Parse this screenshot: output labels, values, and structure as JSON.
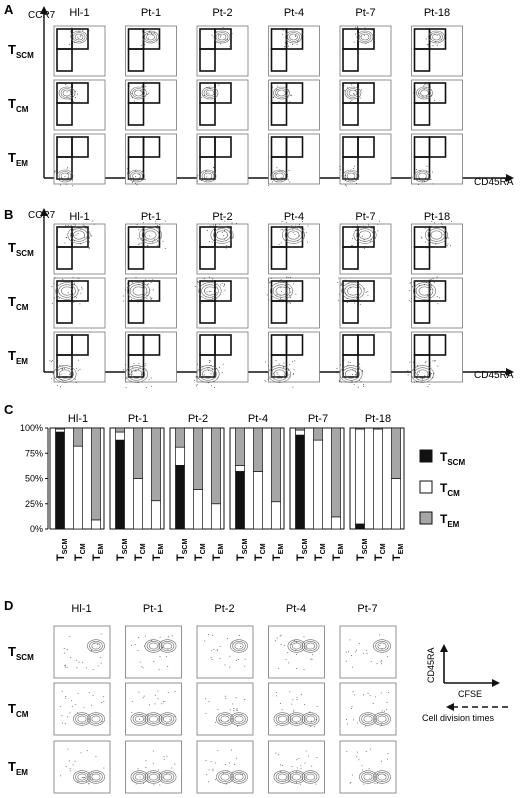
{
  "samples_abc": [
    "Hl-1",
    "Pt-1",
    "Pt-2",
    "Pt-4",
    "Pt-7",
    "Pt-18"
  ],
  "samples_d": [
    "Hl-1",
    "Pt-1",
    "Pt-2",
    "Pt-4",
    "Pt-7"
  ],
  "row_labels": [
    {
      "main": "T",
      "sub": "SCM"
    },
    {
      "main": "T",
      "sub": "CM"
    },
    {
      "main": "T",
      "sub": "EM"
    }
  ],
  "panels": {
    "a": {
      "letter": "A",
      "y_axis": "CCR7",
      "x_axis": "CD45RA"
    },
    "b": {
      "letter": "B",
      "y_axis": "CCR7",
      "x_axis": "CD45RA"
    },
    "c": {
      "letter": "C"
    },
    "d": {
      "letter": "D",
      "y_axis": "CD45RA",
      "x_axis": "CFSE",
      "arrow_label": "Cell division times"
    }
  },
  "chart_data": {
    "type": "bar",
    "stacked": true,
    "groups": [
      "Hl-1",
      "Pt-1",
      "Pt-2",
      "Pt-4",
      "Pt-7",
      "Pt-18"
    ],
    "categories": [
      {
        "main": "T",
        "sub": "SCM"
      },
      {
        "main": "T",
        "sub": "CM"
      },
      {
        "main": "T",
        "sub": "EM"
      }
    ],
    "y_ticks": [
      "0%",
      "25%",
      "50%",
      "75%",
      "100%"
    ],
    "ylim": [
      0,
      100
    ],
    "legend_position": "right",
    "series": [
      {
        "name": {
          "main": "T",
          "sub": "SCM"
        },
        "color": "#111111",
        "values": [
          [
            96,
            0,
            0
          ],
          [
            88,
            0,
            0
          ],
          [
            63,
            0,
            0
          ],
          [
            57,
            0,
            0
          ],
          [
            93,
            0,
            0
          ],
          [
            5,
            0,
            0
          ]
        ]
      },
      {
        "name": {
          "main": "T",
          "sub": "CM"
        },
        "color": "#ffffff",
        "values": [
          [
            3,
            82,
            9
          ],
          [
            8,
            50,
            28
          ],
          [
            18,
            39,
            25
          ],
          [
            6,
            57,
            27
          ],
          [
            5,
            88,
            12
          ],
          [
            94,
            99,
            50
          ]
        ]
      },
      {
        "name": {
          "main": "T",
          "sub": "EM"
        },
        "color": "#a6a6a6",
        "values": [
          [
            1,
            18,
            91
          ],
          [
            4,
            50,
            72
          ],
          [
            19,
            61,
            75
          ],
          [
            37,
            43,
            73
          ],
          [
            2,
            12,
            88
          ],
          [
            1,
            1,
            50
          ]
        ]
      }
    ]
  }
}
